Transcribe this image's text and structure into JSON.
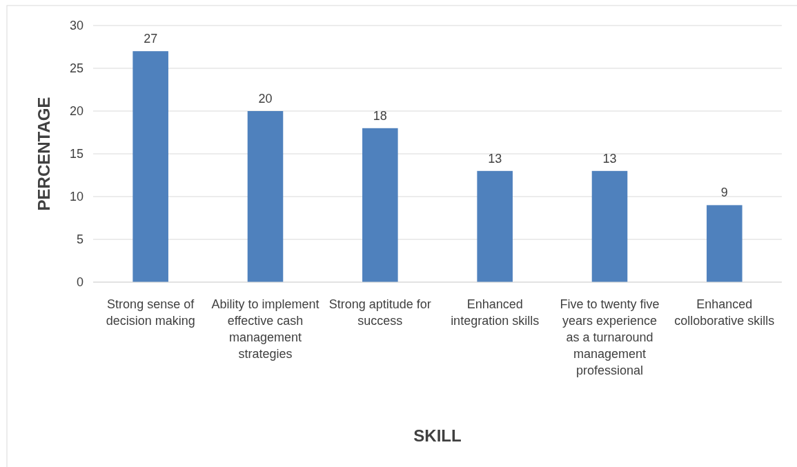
{
  "chart_data": {
    "type": "bar",
    "xlabel": "SKILL",
    "ylabel": "PERCENTAGE",
    "categories": [
      "Strong sense of decision making",
      "Ability to implement effective cash management strategies",
      "Strong aptitude for success",
      "Enhanced integration skills",
      "Five to twenty five years experience as a turnaround management professional",
      "Enhanced colloborative skills"
    ],
    "values": [
      27,
      20,
      18,
      13,
      13,
      9
    ],
    "color": "#4f81bd",
    "ylim": [
      0,
      30
    ],
    "yticks": [
      0,
      5,
      10,
      15,
      20,
      25,
      30
    ],
    "grid": "y",
    "data_labels": true
  }
}
